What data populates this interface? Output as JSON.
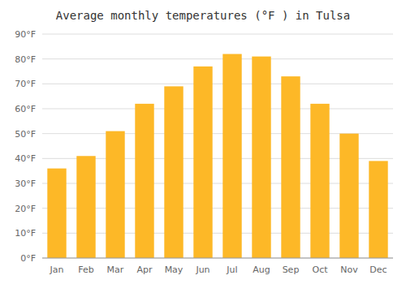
{
  "chart_data": {
    "type": "bar",
    "title": "Average monthly temperatures (°F ) in Tulsa",
    "categories": [
      "Jan",
      "Feb",
      "Mar",
      "Apr",
      "May",
      "Jun",
      "Jul",
      "Aug",
      "Sep",
      "Oct",
      "Nov",
      "Dec"
    ],
    "values": [
      36,
      41,
      51,
      62,
      69,
      77,
      82,
      81,
      73,
      62,
      50,
      39
    ],
    "color": "#FDB827",
    "ylim": [
      0,
      90
    ],
    "yticks": [
      {
        "value": 0,
        "label": "0°F"
      },
      {
        "value": 10,
        "label": "10°F"
      },
      {
        "value": 20,
        "label": "20°F"
      },
      {
        "value": 30,
        "label": "30°F"
      },
      {
        "value": 40,
        "label": "40°F"
      },
      {
        "value": 50,
        "label": "50°F"
      },
      {
        "value": 60,
        "label": "60°F"
      },
      {
        "value": 70,
        "label": "70°F"
      },
      {
        "value": 80,
        "label": "80°F"
      },
      {
        "value": 90,
        "label": "90°F"
      }
    ],
    "grid": true
  }
}
